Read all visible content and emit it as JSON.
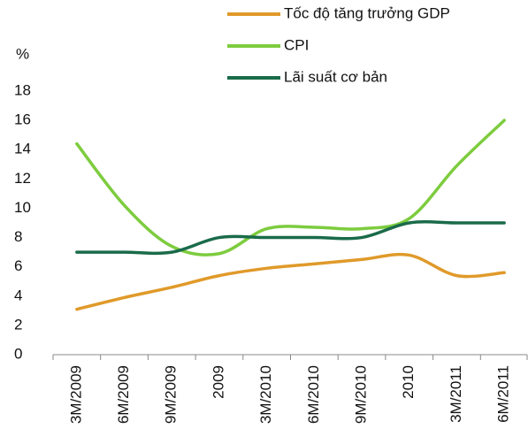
{
  "chart_data": {
    "type": "line",
    "y_label": "%",
    "categories": [
      "3M/2009",
      "6M/2009",
      "9M/2009",
      "2009",
      "3M/2010",
      "6M/2010",
      "9M/2010",
      "2010",
      "3M/2011",
      "6M/2011"
    ],
    "series": [
      {
        "name": "Tốc độ tăng trưởng GDP",
        "color": "#e09a2a",
        "values": [
          3.1,
          3.9,
          4.6,
          5.4,
          5.9,
          6.2,
          6.5,
          6.8,
          5.4,
          5.6
        ]
      },
      {
        "name": "CPI",
        "color": "#7dcc3e",
        "values": [
          14.4,
          10.2,
          7.4,
          6.9,
          8.6,
          8.7,
          8.6,
          9.3,
          12.9,
          16.0
        ]
      },
      {
        "name": "Lãi suất cơ bản",
        "color": "#1a6b4a",
        "values": [
          7,
          7,
          7,
          8,
          8,
          8,
          8,
          9,
          9,
          9
        ]
      }
    ],
    "ylim": [
      0,
      18
    ],
    "yticks": [
      0,
      2,
      4,
      6,
      8,
      10,
      12,
      14,
      16,
      18
    ],
    "grid": false,
    "legend": "top-right"
  }
}
